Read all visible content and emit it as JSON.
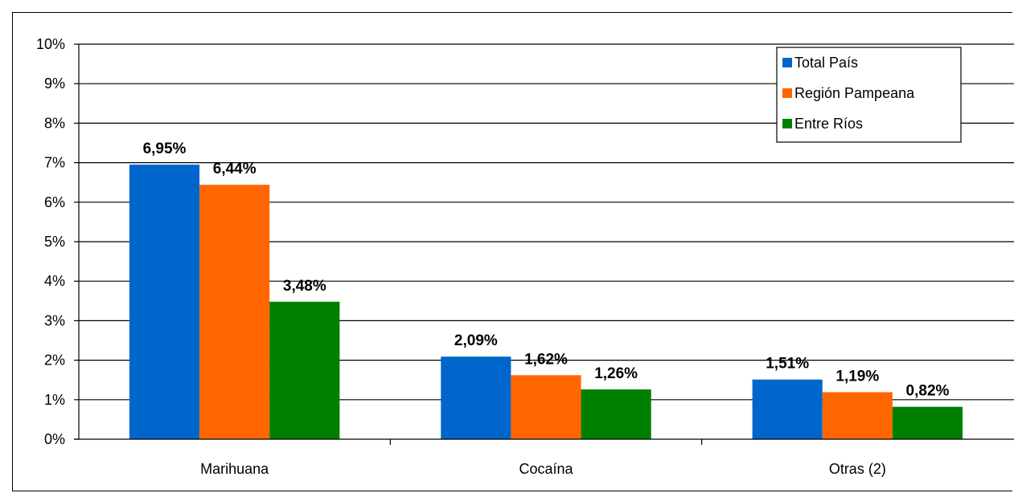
{
  "chart_data": {
    "type": "bar",
    "categories": [
      "Marihuana",
      "Cocaína",
      "Otras (2)"
    ],
    "series": [
      {
        "name": "Total País",
        "values": [
          6.95,
          2.09,
          1.51
        ],
        "labels": [
          "6,95%",
          "2,09%",
          "1,51%"
        ],
        "color": "#0066CC"
      },
      {
        "name": "Región Pampeana",
        "values": [
          6.44,
          1.62,
          1.19
        ],
        "labels": [
          "6,44%",
          "1,62%",
          "1,19%"
        ],
        "color": "#FF6600"
      },
      {
        "name": "Entre Ríos",
        "values": [
          3.48,
          1.26,
          0.82
        ],
        "labels": [
          "3,48%",
          "1,26%",
          "0,82%"
        ],
        "color": "#008000"
      }
    ],
    "ylim": [
      0,
      10
    ],
    "yticks": [
      "0%",
      "1%",
      "2%",
      "3%",
      "4%",
      "5%",
      "6%",
      "7%",
      "8%",
      "9%",
      "10%"
    ],
    "grid": true,
    "legend_position": "top-right"
  }
}
